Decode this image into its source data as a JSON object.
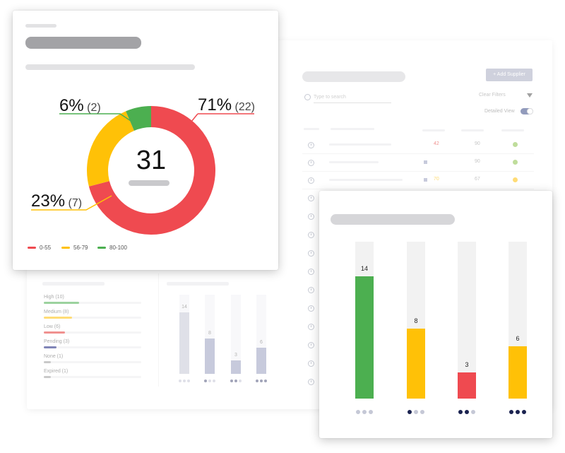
{
  "background_panel": {
    "add_button_label": "+ Add Supplier",
    "search_placeholder": "Type to search",
    "clear_filters_label": "Clear Filters",
    "detailed_view_label": "Detailed View",
    "table": {
      "rows": [
        {
          "score": "42",
          "col2": "90",
          "status_color": "#8bc34a"
        },
        {
          "score": "",
          "col2": "90",
          "status_color": "#8bc34a"
        },
        {
          "score": "70",
          "col2": "67",
          "status_color": "#ffc107"
        }
      ]
    },
    "filters": [
      {
        "label": "High (10)",
        "color": "#4caf50"
      },
      {
        "label": "Medium (8)",
        "color": "#ffc107"
      },
      {
        "label": "Low (6)",
        "color": "#e53935"
      },
      {
        "label": "Pending (3)",
        "color": "#1a237e"
      },
      {
        "label": "None (1)",
        "color": "#9e9e9e"
      },
      {
        "label": "Expired (1)",
        "color": "#9e9e9e"
      }
    ],
    "mini_bars": [
      {
        "value": "14"
      },
      {
        "value": "8"
      },
      {
        "value": "3"
      },
      {
        "value": "6"
      }
    ]
  },
  "donut_card": {
    "center_value": "31",
    "segments": [
      {
        "label": "71%",
        "count": "(22)",
        "value": 22,
        "color": "#ef4a50"
      },
      {
        "label": "23%",
        "count": "(7)",
        "value": 7,
        "color": "#ffc107"
      },
      {
        "label": "6%",
        "count": "(2)",
        "value": 2,
        "color": "#4caf50"
      }
    ],
    "legend": [
      {
        "label": "0-55",
        "color": "#ef4a50"
      },
      {
        "label": "56-79",
        "color": "#ffc107"
      },
      {
        "label": "80-100",
        "color": "#4caf50"
      }
    ]
  },
  "bar_card": {
    "bars": [
      {
        "value": 14,
        "label": "14",
        "color": "#4caf50",
        "filled_dots": 0
      },
      {
        "value": 8,
        "label": "8",
        "color": "#ffc107",
        "filled_dots": 1
      },
      {
        "value": 3,
        "label": "3",
        "color": "#ef4a50",
        "filled_dots": 2
      },
      {
        "value": 6,
        "label": "6",
        "color": "#ffc107",
        "filled_dots": 3
      }
    ],
    "max": 18
  }
}
